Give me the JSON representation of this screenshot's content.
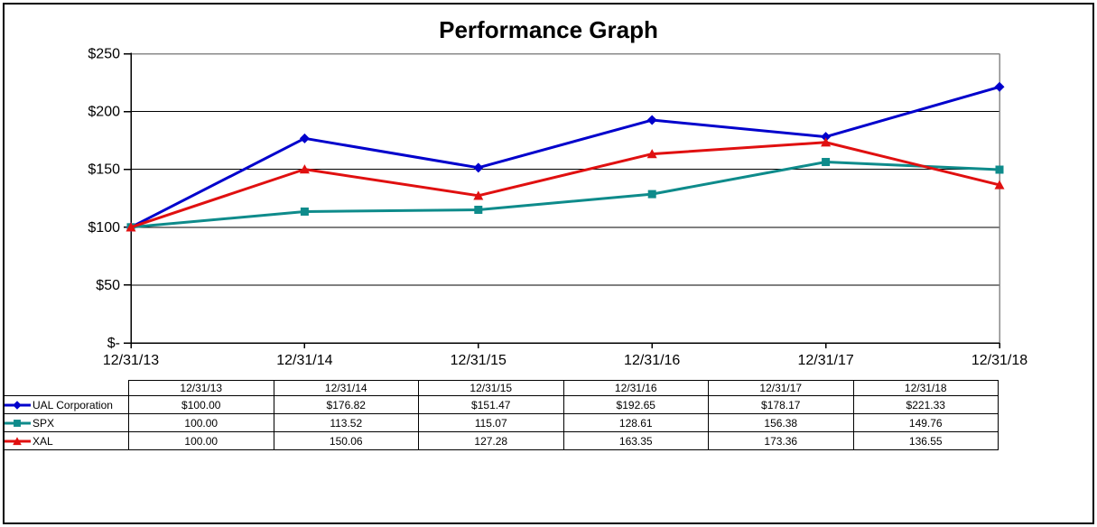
{
  "chart": {
    "title": "Performance Graph"
  },
  "chart_data": {
    "type": "line",
    "title": "Performance Graph",
    "categories": [
      "12/31/13",
      "12/31/14",
      "12/31/15",
      "12/31/16",
      "12/31/17",
      "12/31/18"
    ],
    "series": [
      {
        "name": "UAL Corporation",
        "marker": "diamond",
        "color": "#0000CC",
        "values": [
          100.0,
          176.82,
          151.47,
          192.65,
          178.17,
          221.33
        ]
      },
      {
        "name": "SPX",
        "marker": "square",
        "color": "#0E8B8B",
        "values": [
          100.0,
          113.52,
          115.07,
          128.61,
          156.38,
          149.76
        ]
      },
      {
        "name": "XAL",
        "marker": "triangle",
        "color": "#E01010",
        "values": [
          100.0,
          150.06,
          127.28,
          163.35,
          173.36,
          136.55
        ]
      }
    ],
    "ylim": [
      0,
      250
    ],
    "y_ticks": [
      {
        "label": "$250",
        "value": 250
      },
      {
        "label": "$200",
        "value": 200
      },
      {
        "label": "$150",
        "value": 150
      },
      {
        "label": "$100",
        "value": 100
      },
      {
        "label": "$50",
        "value": 50
      },
      {
        "label": "$-",
        "value": 0
      }
    ],
    "grid": true,
    "legend_position": "table-left"
  },
  "table": {
    "header": [
      "",
      "12/31/13",
      "12/31/14",
      "12/31/15",
      "12/31/16",
      "12/31/17",
      "12/31/18"
    ],
    "rows": [
      {
        "label": "UAL Corporation",
        "values": [
          "$100.00",
          "$176.82",
          "$151.47",
          "$192.65",
          "$178.17",
          "$221.33"
        ]
      },
      {
        "label": "SPX",
        "values": [
          "100.00",
          "113.52",
          "115.07",
          "128.61",
          "156.38",
          "149.76"
        ]
      },
      {
        "label": "XAL",
        "values": [
          "100.00",
          "150.06",
          "127.28",
          "163.35",
          "173.36",
          "136.55"
        ]
      }
    ]
  }
}
